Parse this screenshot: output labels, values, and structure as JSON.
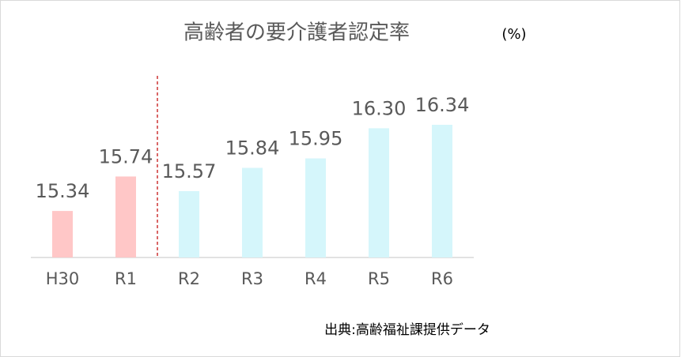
{
  "chart_data": {
    "type": "bar",
    "title": "高齢者の要介護者認定率",
    "unit": "(%)",
    "source": "出典:高齢福祉課提供データ",
    "categories": [
      "H30",
      "R1",
      "R2",
      "R3",
      "R4",
      "R5",
      "R6"
    ],
    "values": [
      15.34,
      15.74,
      15.57,
      15.84,
      15.95,
      16.3,
      16.34
    ],
    "value_labels": [
      "15.34",
      "15.74",
      "15.57",
      "15.84",
      "15.95",
      "16.30",
      "16.34"
    ],
    "colors": [
      "#ffc7c7",
      "#ffc7c7",
      "#d5f6fb",
      "#d5f6fb",
      "#d5f6fb",
      "#d5f6fb",
      "#d5f6fb"
    ],
    "ylim": [
      14.8,
      17.0
    ]
  }
}
